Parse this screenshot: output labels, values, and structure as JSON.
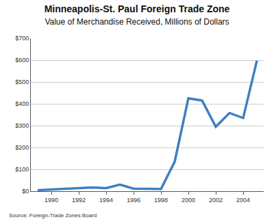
{
  "chart_data": {
    "type": "line",
    "title": "Minneapolis-St. Paul Foreign Trade Zone",
    "subtitle": "Value of Merchandise Received, Millions of Dollars",
    "annotations": [
      "Source: Foreign-Trade Zones Board"
    ],
    "x": [
      1989,
      1990,
      1991,
      1992,
      1993,
      1994,
      1995,
      1996,
      1997,
      1998,
      1999,
      2000,
      2001,
      2002,
      2003,
      2004,
      2005
    ],
    "values": [
      5,
      8,
      13,
      14,
      17,
      14,
      30,
      12,
      10,
      10,
      135,
      425,
      415,
      295,
      358,
      335,
      597
    ],
    "color": "#3f7fc1",
    "xlim": [
      1988.5,
      2005.5
    ],
    "xticks": [
      1990,
      1992,
      1994,
      1996,
      1998,
      2000,
      2002,
      2004
    ],
    "ylim": [
      0,
      700
    ],
    "yticks": [
      {
        "value": 0,
        "label": "$0"
      },
      {
        "value": 100,
        "label": "$100"
      },
      {
        "value": 200,
        "label": "$200"
      },
      {
        "value": 300,
        "label": "$300"
      },
      {
        "value": 400,
        "label": "$400"
      },
      {
        "value": 500,
        "label": "$500"
      },
      {
        "value": 600,
        "label": "$600"
      },
      {
        "value": 700,
        "label": "$700"
      }
    ],
    "grid": true
  }
}
